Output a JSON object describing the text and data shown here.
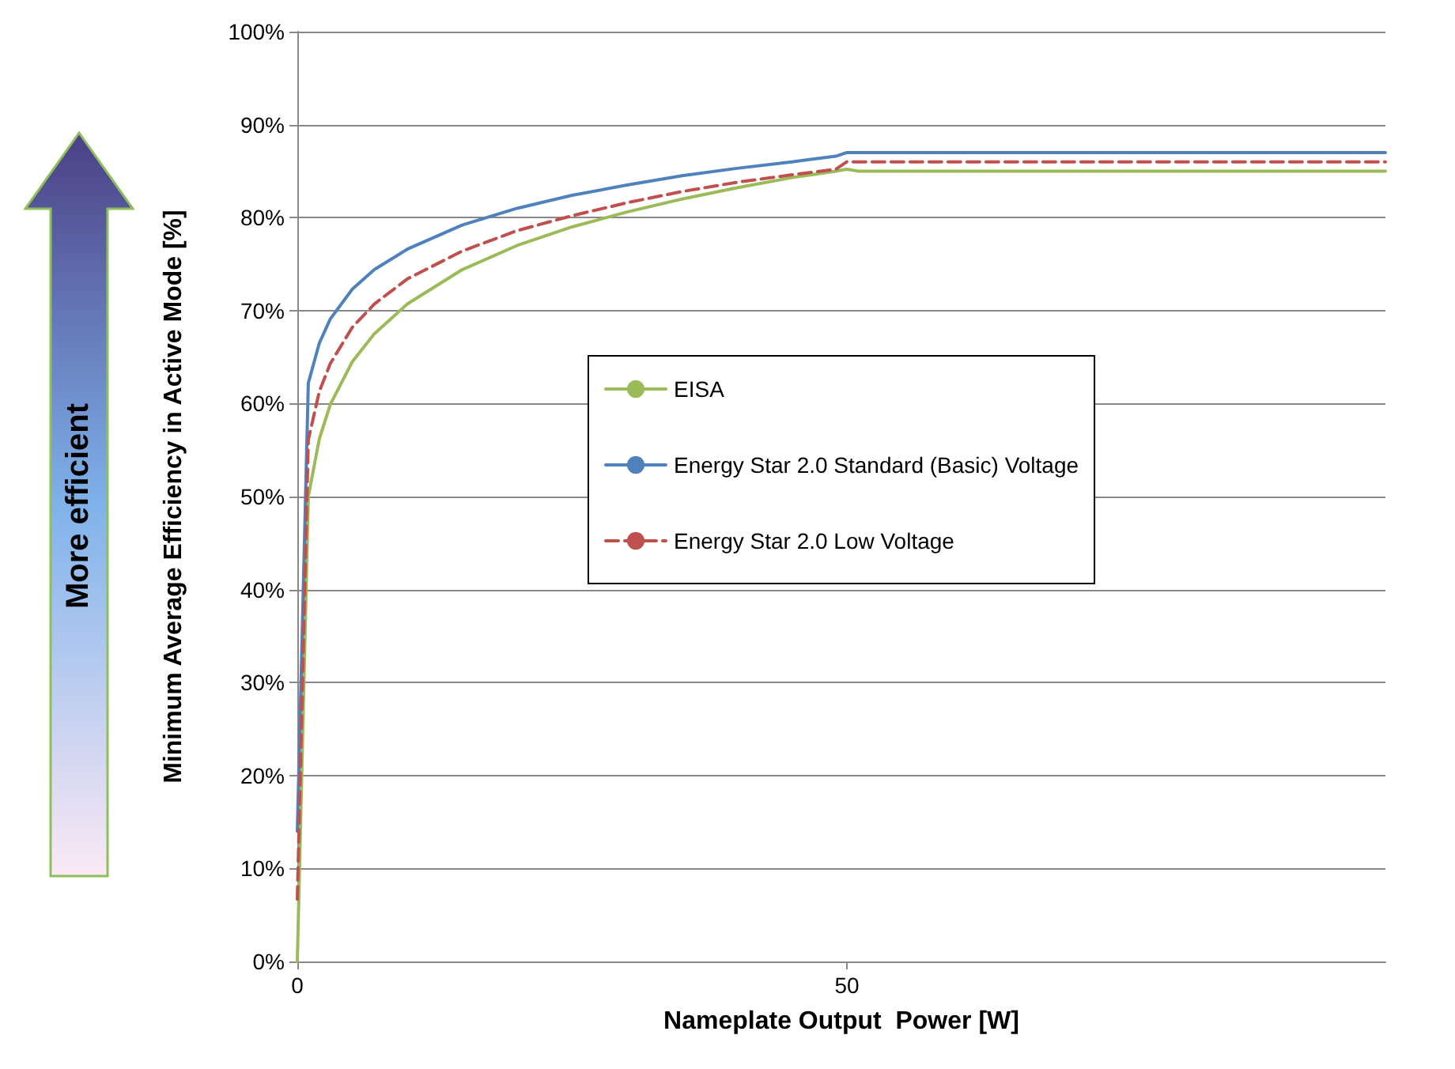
{
  "chart_data": {
    "type": "line",
    "xlabel": "Nameplate Output  Power [W]",
    "ylabel": "Minimum Average Efficiency in Active Mode [%]",
    "xlim": [
      0,
      99
    ],
    "xticks": [
      0,
      50
    ],
    "ylim": [
      0,
      100
    ],
    "yticks": [
      {
        "value": 0,
        "label": "0%"
      },
      {
        "value": 10,
        "label": "10%"
      },
      {
        "value": 20,
        "label": "20%"
      },
      {
        "value": 30,
        "label": "30%"
      },
      {
        "value": 40,
        "label": "40%"
      },
      {
        "value": 50,
        "label": "50%"
      },
      {
        "value": 60,
        "label": "60%"
      },
      {
        "value": 70,
        "label": "70%"
      },
      {
        "value": 80,
        "label": "80%"
      },
      {
        "value": 90,
        "label": "90%"
      },
      {
        "value": 100,
        "label": "100%"
      }
    ],
    "grid": "y",
    "legend": "right",
    "marker": "none",
    "x": [
      0,
      0.5,
      1,
      2,
      3,
      5,
      7,
      10,
      15,
      20,
      25,
      30,
      35,
      40,
      45,
      49,
      50,
      51,
      60,
      80,
      99
    ],
    "series": [
      {
        "name": "EISA",
        "color": "#9bbb59",
        "line_style": "solid",
        "values": [
          0,
          25,
          50,
          56.2,
          59.9,
          64.5,
          67.5,
          70.7,
          74.4,
          77.0,
          79.0,
          80.6,
          82.0,
          83.2,
          84.3,
          85.0,
          85.2,
          85,
          85,
          85,
          85
        ]
      },
      {
        "name": "Energy Star 2.0 Standard (Basic) Voltage",
        "color": "#4f81bd",
        "line_style": "solid",
        "values": [
          14,
          38,
          62.2,
          66.5,
          69.1,
          72.3,
          74.4,
          76.6,
          79.2,
          81.0,
          82.4,
          83.5,
          84.5,
          85.3,
          86.0,
          86.6,
          87,
          87,
          87,
          87,
          87
        ]
      },
      {
        "name": "Energy Star 2.0 Low Voltage",
        "color": "#c0504d",
        "line_style": "dashed",
        "values": [
          6.7,
          31.5,
          56.1,
          61.3,
          64.3,
          68.2,
          70.7,
          73.4,
          76.4,
          78.6,
          80.2,
          81.6,
          82.8,
          83.8,
          84.6,
          85.2,
          86,
          86,
          86,
          86,
          86
        ]
      }
    ],
    "annotations": [
      "More efficient"
    ]
  }
}
